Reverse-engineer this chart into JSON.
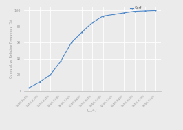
{
  "title": "",
  "xlabel": "0...47",
  "ylabel": "Cumulative Relative Frequency (%)",
  "legend_label": "Corf",
  "line_color": "#4a86c8",
  "marker": "o",
  "markersize": 1.5,
  "linewidth": 0.8,
  "x_labels": [
    "2000-2149",
    "2150-2299",
    "2300-2449",
    "2450-2599",
    "2600-2749",
    "2750-2899",
    "2900-3049",
    "3050-3199",
    "3200-3349",
    "3350-3499",
    "3500-3649",
    "3650-3799",
    "3800-3949"
  ],
  "y_values": [
    4,
    11,
    20,
    37,
    60,
    73,
    85,
    93,
    95,
    97,
    99,
    99.5,
    100
  ],
  "ylim": [
    0,
    105
  ],
  "yticks": [
    0,
    20,
    40,
    60,
    80,
    100
  ],
  "background_color": "#ebebeb",
  "grid_color": "#ffffff",
  "axes_bg": "#ebebeb"
}
